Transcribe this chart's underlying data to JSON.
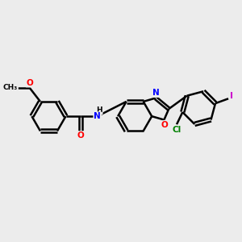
{
  "bg_color": "#ececec",
  "bond_color": "#000000",
  "bond_width": 1.8,
  "atom_colors": {
    "O": "#ff0000",
    "N": "#0000ff",
    "Cl": "#008000",
    "I": "#cc00cc",
    "C": "#000000"
  },
  "figsize": [
    3.0,
    3.0
  ],
  "dpi": 100
}
